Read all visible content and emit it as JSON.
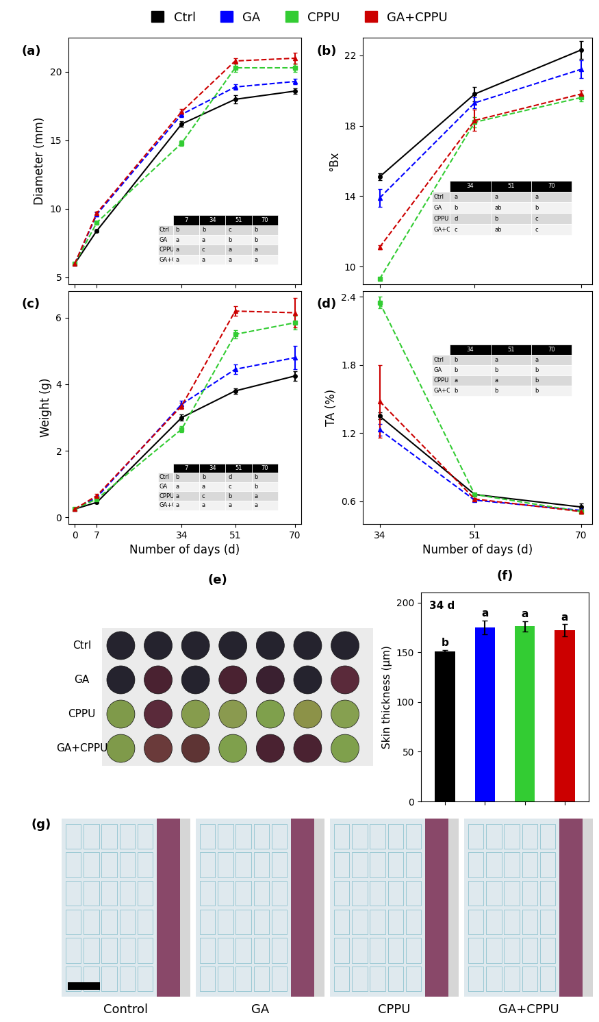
{
  "figure": {
    "legend": "upper center"
  },
  "chart_data": [
    {
      "type": "line",
      "title": "(a)",
      "ylabel": "Diameter (mm)",
      "x": [
        0,
        7,
        34,
        51,
        70
      ],
      "xlim": [
        -2,
        72
      ],
      "xticks": [
        0,
        7,
        34,
        51,
        70
      ],
      "ylim": [
        4.5,
        22.5
      ],
      "yticks": [
        5,
        10,
        15,
        20
      ],
      "tick_labels": "y",
      "series": [
        {
          "name": "Ctrl",
          "color": "#000000",
          "marker": "o",
          "line_style": "solid",
          "values": [
            6.0,
            8.4,
            16.2,
            18.0,
            18.6
          ],
          "errors": [
            0.05,
            0.1,
            0.2,
            0.3,
            0.2
          ]
        },
        {
          "name": "GA",
          "color": "#0000ff",
          "marker": "^",
          "line_style": "dashed",
          "values": [
            6.0,
            9.6,
            16.9,
            18.9,
            19.3
          ],
          "errors": [
            0.05,
            0.15,
            0.2,
            0.2,
            0.2
          ]
        },
        {
          "name": "CPPU",
          "color": "#33cc33",
          "marker": "s",
          "line_style": "dashed",
          "values": [
            6.0,
            9.0,
            14.8,
            20.3,
            20.3
          ],
          "errors": [
            0.05,
            0.1,
            0.2,
            0.3,
            0.3
          ]
        },
        {
          "name": "GA+CPPU",
          "color": "#cc0000",
          "marker": "^",
          "line_style": "dashed",
          "values": [
            6.0,
            9.7,
            17.1,
            20.8,
            21.0
          ],
          "errors": [
            0.05,
            0.1,
            0.2,
            0.2,
            0.4
          ]
        }
      ],
      "table": {
        "columns": [
          "7",
          "34",
          "51",
          "70"
        ],
        "row_labels": [
          "Ctrl",
          "GA",
          "CPPU",
          "GA+CPPU"
        ],
        "rows": [
          [
            "b",
            "b",
            "c",
            "b"
          ],
          [
            "a",
            "a",
            "b",
            "b"
          ],
          [
            "a",
            "c",
            "a",
            "a"
          ],
          [
            "a",
            "a",
            "a",
            "a"
          ]
        ]
      }
    },
    {
      "type": "line",
      "title": "(b)",
      "ylabel": "°Bx",
      "x": [
        34,
        51,
        70
      ],
      "xlim": [
        31,
        72
      ],
      "xticks": [
        34,
        51,
        70
      ],
      "ylim": [
        9,
        23
      ],
      "yticks": [
        10,
        14,
        18,
        22
      ],
      "tick_labels": "y",
      "series": [
        {
          "name": "Ctrl",
          "color": "#000000",
          "marker": "o",
          "line_style": "solid",
          "values": [
            15.1,
            19.8,
            22.3
          ],
          "errors": [
            0.2,
            0.4,
            0.5
          ]
        },
        {
          "name": "GA",
          "color": "#0000ff",
          "marker": "^",
          "line_style": "dashed",
          "values": [
            13.9,
            19.3,
            21.2
          ],
          "errors": [
            0.5,
            0.3,
            0.5
          ]
        },
        {
          "name": "CPPU",
          "color": "#33cc33",
          "marker": "s",
          "line_style": "dashed",
          "values": [
            9.3,
            18.2,
            19.6
          ],
          "errors": [
            0.1,
            0.3,
            0.2
          ]
        },
        {
          "name": "GA+CPPU",
          "color": "#cc0000",
          "marker": "^",
          "line_style": "dashed",
          "values": [
            11.1,
            18.3,
            19.8
          ],
          "errors": [
            0.1,
            0.6,
            0.2
          ]
        }
      ],
      "table": {
        "columns": [
          "34",
          "51",
          "70"
        ],
        "row_labels": [
          "Ctrl",
          "GA",
          "CPPU",
          "GA+CPPU"
        ],
        "rows": [
          [
            "a",
            "a",
            "a"
          ],
          [
            "b",
            "ab",
            "b"
          ],
          [
            "d",
            "b",
            "c"
          ],
          [
            "c",
            "ab",
            "c"
          ]
        ]
      }
    },
    {
      "type": "line",
      "title": "(c)",
      "ylabel": "Weight (g)",
      "xlabel": "Number of days (d)",
      "x": [
        0,
        7,
        34,
        51,
        70
      ],
      "xlim": [
        -2,
        72
      ],
      "xticks": [
        0,
        7,
        34,
        51,
        70
      ],
      "ylim": [
        -0.2,
        6.8
      ],
      "yticks": [
        0,
        2,
        4,
        6
      ],
      "series": [
        {
          "name": "Ctrl",
          "color": "#000000",
          "marker": "o",
          "line_style": "solid",
          "values": [
            0.25,
            0.45,
            3.0,
            3.8,
            4.25
          ],
          "errors": [
            0.02,
            0.03,
            0.1,
            0.08,
            0.15
          ]
        },
        {
          "name": "GA",
          "color": "#0000ff",
          "marker": "^",
          "line_style": "dashed",
          "values": [
            0.25,
            0.6,
            3.4,
            4.45,
            4.8
          ],
          "errors": [
            0.02,
            0.05,
            0.1,
            0.15,
            0.35
          ]
        },
        {
          "name": "CPPU",
          "color": "#33cc33",
          "marker": "s",
          "line_style": "dashed",
          "values": [
            0.25,
            0.55,
            2.65,
            5.5,
            5.85
          ],
          "errors": [
            0.02,
            0.05,
            0.1,
            0.12,
            0.2
          ]
        },
        {
          "name": "GA+CPPU",
          "color": "#cc0000",
          "marker": "^",
          "line_style": "dashed",
          "values": [
            0.25,
            0.65,
            3.35,
            6.2,
            6.15
          ],
          "errors": [
            0.02,
            0.05,
            0.1,
            0.15,
            0.45
          ]
        }
      ],
      "table": {
        "columns": [
          "7",
          "34",
          "51",
          "70"
        ],
        "row_labels": [
          "Ctrl",
          "GA",
          "CPPU",
          "GA+CPPU"
        ],
        "rows": [
          [
            "b",
            "b",
            "d",
            "b"
          ],
          [
            "a",
            "a",
            "c",
            "b"
          ],
          [
            "a",
            "c",
            "b",
            "a"
          ],
          [
            "a",
            "a",
            "a",
            "a"
          ]
        ]
      }
    },
    {
      "type": "line",
      "title": "(d)",
      "ylabel": "TA (%)",
      "xlabel": "Number of days (d)",
      "x": [
        34,
        51,
        70
      ],
      "xlim": [
        31,
        72
      ],
      "xticks": [
        34,
        51,
        70
      ],
      "ylim": [
        0.4,
        2.45
      ],
      "yticks": [
        0.6,
        1.2,
        1.8,
        2.4
      ],
      "series": [
        {
          "name": "Ctrl",
          "color": "#000000",
          "marker": "o",
          "line_style": "solid",
          "values": [
            1.35,
            0.66,
            0.55
          ],
          "errors": [
            0.03,
            0.01,
            0.03
          ]
        },
        {
          "name": "GA",
          "color": "#0000ff",
          "marker": "^",
          "line_style": "dashed",
          "values": [
            1.23,
            0.61,
            0.52
          ],
          "errors": [
            0.05,
            0.01,
            0.02
          ]
        },
        {
          "name": "CPPU",
          "color": "#33cc33",
          "marker": "s",
          "line_style": "dashed",
          "values": [
            2.35,
            0.66,
            0.51
          ],
          "errors": [
            0.05,
            0.01,
            0.02
          ]
        },
        {
          "name": "GA+CPPU",
          "color": "#cc0000",
          "marker": "^",
          "line_style": "dashed",
          "values": [
            1.48,
            0.62,
            0.51
          ],
          "errors": [
            0.32,
            0.01,
            0.02
          ]
        }
      ],
      "table": {
        "columns": [
          "34",
          "51",
          "70"
        ],
        "row_labels": [
          "Ctrl",
          "GA",
          "CPPU",
          "GA+CPPU"
        ],
        "rows": [
          [
            "b",
            "a",
            "a"
          ],
          [
            "b",
            "b",
            "b"
          ],
          [
            "a",
            "a",
            "b"
          ],
          [
            "b",
            "b",
            "b"
          ]
        ]
      }
    },
    {
      "type": "bar",
      "title": "(f)",
      "annotation": "34 d",
      "ylabel": "Skin thickness (μm)",
      "categories": [
        null,
        null,
        null,
        null
      ],
      "values": [
        151,
        175,
        176,
        172
      ],
      "errors": [
        1,
        7,
        5,
        6
      ],
      "colors": [
        "#000000",
        "#0000ff",
        "#33cc33",
        "#cc0000"
      ],
      "letters": [
        "b",
        "a",
        "a",
        "a"
      ],
      "ylim": [
        0,
        210
      ],
      "yticks": [
        0,
        50,
        100,
        150,
        200
      ],
      "tick_labels": "y"
    }
  ],
  "photo_panels": [
    {
      "label": "(e)",
      "rows": [
        "Ctrl",
        "GA",
        "CPPU",
        "GA+CPPU"
      ]
    },
    {
      "label": "(g)",
      "captions": [
        "Control",
        "GA",
        "CPPU",
        "GA+CPPU"
      ]
    }
  ]
}
